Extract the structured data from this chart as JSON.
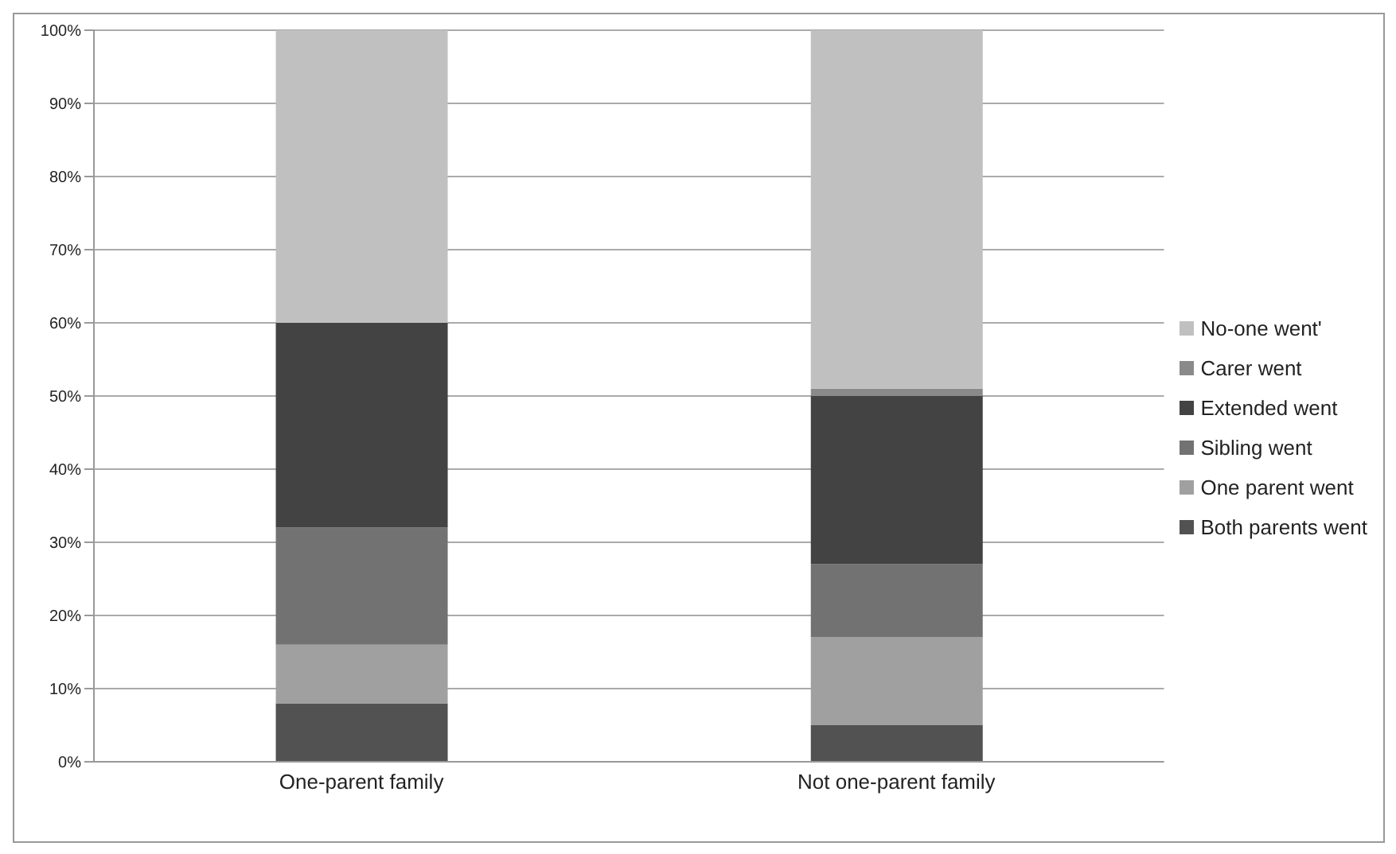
{
  "chart_data": {
    "type": "bar",
    "stacked": true,
    "categories": [
      "One-parent family",
      "Not one-parent family"
    ],
    "series": [
      {
        "name": "Both parents went",
        "color": "#525252",
        "values": [
          8,
          5
        ]
      },
      {
        "name": "One parent went",
        "color": "#a0a0a0",
        "values": [
          8,
          12
        ]
      },
      {
        "name": "Sibling went",
        "color": "#727272",
        "values": [
          16,
          10
        ]
      },
      {
        "name": "Extended went",
        "color": "#434343",
        "values": [
          28,
          23
        ]
      },
      {
        "name": "Carer went",
        "color": "#8a8a8a",
        "values": [
          0,
          1
        ]
      },
      {
        "name": "No-one went'",
        "color": "#c0c0c0",
        "values": [
          40,
          49
        ]
      }
    ],
    "ylim": [
      0,
      100
    ],
    "yticks": [
      {
        "value": 0,
        "label": "0%"
      },
      {
        "value": 10,
        "label": "10%"
      },
      {
        "value": 20,
        "label": "20%"
      },
      {
        "value": 30,
        "label": "30%"
      },
      {
        "value": 40,
        "label": "40%"
      },
      {
        "value": 50,
        "label": "50%"
      },
      {
        "value": 60,
        "label": "60%"
      },
      {
        "value": 70,
        "label": "70%"
      },
      {
        "value": 80,
        "label": "80%"
      },
      {
        "value": 90,
        "label": "90%"
      },
      {
        "value": 100,
        "label": "100%"
      }
    ],
    "grid": "y",
    "legend": "right"
  }
}
